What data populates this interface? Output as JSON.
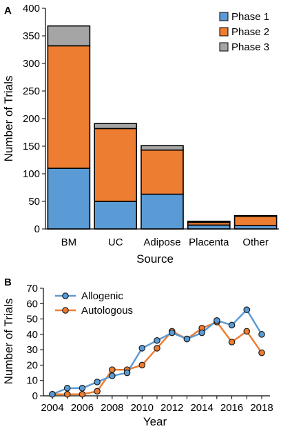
{
  "chart_data": [
    {
      "panel_label": "A",
      "type": "bar",
      "stacked": true,
      "xlabel": "Source",
      "ylabel": "Number of Trials",
      "ylim": [
        0,
        400
      ],
      "yticks": [
        0,
        50,
        100,
        150,
        200,
        250,
        300,
        350,
        400
      ],
      "categories": [
        "BM",
        "UC",
        "Adipose",
        "Placenta",
        "Other"
      ],
      "series": [
        {
          "name": "Phase 1",
          "color": "#5b9bd5",
          "values": [
            110,
            50,
            63,
            7,
            6
          ]
        },
        {
          "name": "Phase 2",
          "color": "#ed7d31",
          "values": [
            222,
            132,
            80,
            5,
            17
          ]
        },
        {
          "name": "Phase 3",
          "color": "#a5a5a5",
          "values": [
            36,
            9,
            8,
            2,
            1
          ]
        }
      ],
      "legend_position": "top-right",
      "grid": false
    },
    {
      "panel_label": "B",
      "type": "line",
      "xlabel": "Year",
      "ylabel": "Number of Trials",
      "ylim": [
        0,
        70
      ],
      "yticks": [
        0,
        10,
        20,
        30,
        40,
        50,
        60,
        70
      ],
      "xticks": [
        2004,
        2006,
        2008,
        2010,
        2012,
        2014,
        2016,
        2018
      ],
      "x": [
        2004,
        2005,
        2006,
        2007,
        2008,
        2009,
        2010,
        2011,
        2012,
        2013,
        2014,
        2015,
        2016,
        2017,
        2018
      ],
      "series": [
        {
          "name": "Allogenic",
          "color": "#5b9bd5",
          "values": [
            1,
            5,
            5,
            9,
            13,
            15,
            31,
            36,
            41,
            37,
            41,
            49,
            46,
            56,
            40
          ]
        },
        {
          "name": "Autologous",
          "color": "#ed7d31",
          "values": [
            1,
            1,
            1,
            3,
            17,
            17,
            20,
            31,
            42,
            37,
            44,
            48,
            35,
            42,
            28
          ]
        }
      ],
      "legend_position": "top-left",
      "grid": false
    }
  ]
}
